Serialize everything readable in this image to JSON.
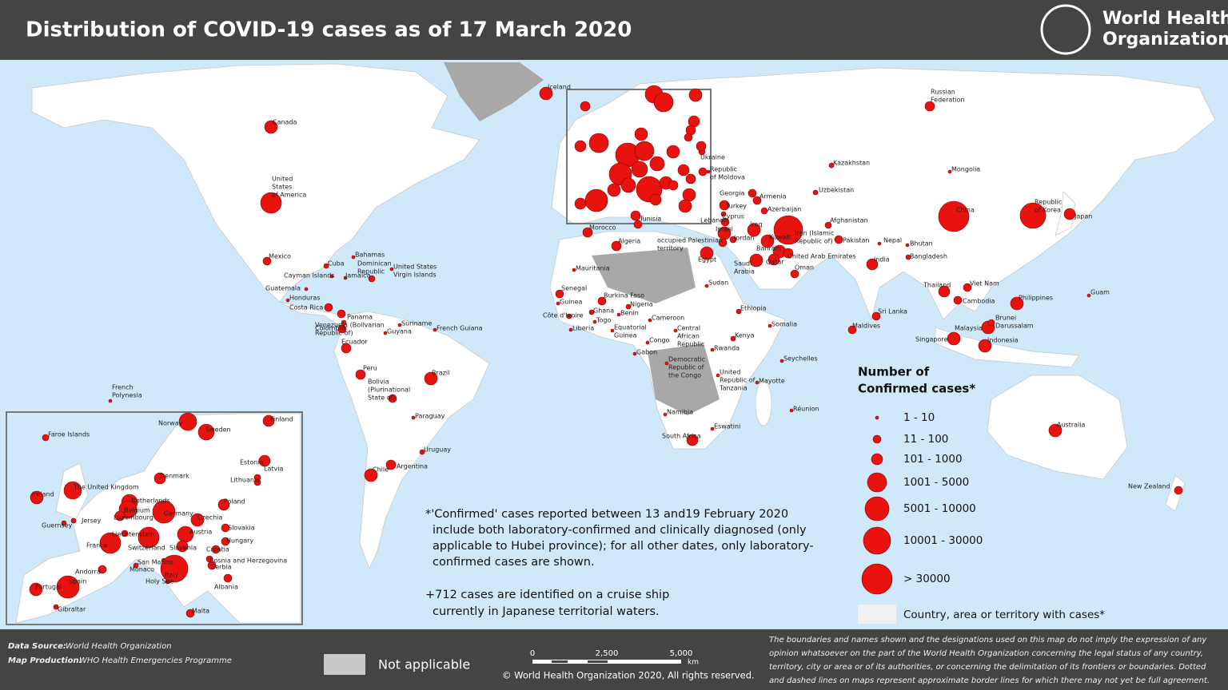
{
  "header": {
    "title": "Distribution of COVID-19  cases as of 17 March 2020",
    "logo": [
      "World Health",
      "Organization"
    ]
  },
  "map": {
    "countries": [
      "Iceland",
      "Canada",
      [
        "United",
        "States",
        "of America"
      ],
      "Mexico",
      [
        "Russian",
        "Federation"
      ],
      "Kazakhstan",
      "Mongolia",
      "Uzbekistan",
      "China",
      [
        "Republic",
        "of Korea"
      ],
      "Japan",
      "Afghanistan",
      [
        "Iran (Islamic",
        "Republic of)"
      ],
      "Pakistan",
      "India",
      "Nepal",
      "Bhutan",
      "Bangladesh",
      "Thailand",
      "Viet Nam",
      "Cambodia",
      "Philippines",
      "Guam",
      "Sri Lanka",
      "Maldives",
      "Malaysia",
      [
        "Brunei",
        "Darussalam"
      ],
      "Singapore",
      "Indonesia",
      "Australia",
      "New Zealand",
      "Turkey",
      "Georgia",
      "Armenia",
      "Azerbaijan",
      "Cyprus",
      "Lebanon",
      "Israel",
      "Iraq",
      "Kuwait",
      [
        "occupied Palestinian",
        "territory"
      ],
      "Jordan",
      "Bahrain",
      "Qatar",
      "United Arab Emirates",
      "Oman",
      [
        "Saudi",
        "Arabia"
      ],
      "Egypt",
      "Sudan",
      "Ethiopia",
      "Somalia",
      "Kenya",
      "Rwanda",
      "Seychelles",
      "Mayotte",
      "Réunion",
      [
        "United",
        "Republic of",
        "Tanzania"
      ],
      "Eswatini",
      [
        "Democratic",
        "Republic of",
        "the Congo"
      ],
      [
        "Central",
        "African",
        "Republic"
      ],
      "Congo",
      "Gabon",
      [
        "Equatorial",
        "Guinea"
      ],
      "Cameroon",
      "Nigeria",
      "Benin",
      "Togo",
      "Ghana",
      "Burkina Faso",
      "Côte d'Ivoire",
      "Liberia",
      "Guinea",
      "Senegal",
      "Mauritania",
      "Morocco",
      "Algeria",
      "Tunisia",
      "Namibia",
      "South Africa",
      "Brazil",
      "Peru",
      [
        "Bolivia",
        "(Plurinational",
        "State of)"
      ],
      "Paraguay",
      "Uruguay",
      "Argentina",
      "Chile",
      "Ecuador",
      "Colombia",
      [
        "Venezuela (Bolivarian",
        "Republic of)"
      ],
      "Guyana",
      "Suriname",
      "French Guiana",
      "Panama",
      "Costa Rica",
      "Honduras",
      "Guatemala",
      "Cuba",
      "Bahamas",
      "Cayman Islands",
      "Jamaica",
      [
        "Dominican",
        "Republic"
      ],
      [
        "United States",
        "Virgin Islands"
      ],
      [
        "French",
        "Polynesia"
      ],
      "Ukraine",
      [
        "Republic",
        "of Moldova"
      ]
    ],
    "inset_countries": [
      "Faroe Islands",
      "Norway",
      "Sweden",
      "Finland",
      "Estonia",
      "Latvia",
      "Denmark",
      "Lithuania",
      "Ireland",
      "The United Kingdom",
      "Netherlands",
      "Belgium",
      "Luxembourg",
      "Germany",
      "Poland",
      "Czechia",
      "Guernsey",
      "Jersey",
      "Slovakia",
      "Liechtenstein",
      "Austria",
      "Hungary",
      "France",
      "Switzerland",
      "Slovenia",
      "Croatia",
      "Andorra",
      "San Marino",
      "Monaco",
      "Bosnia and Herzegovina",
      "Serbia",
      "Holy See",
      "Italy",
      "Portugal",
      "Spain",
      "Albania",
      "Gibraltar",
      "Malta"
    ]
  },
  "legend": {
    "title": [
      "Number of",
      "Confirmed cases*"
    ],
    "items": [
      "1 - 10",
      "11 - 100",
      "101 - 1000",
      "1001 - 5000",
      "5001 - 10000",
      "10001 - 30000",
      "> 30000"
    ],
    "territory": "Country, area or territory with cases*"
  },
  "notes": {
    "confirmed": [
      "*'Confirmed' cases reported between 13 and19 February 2020",
      "include both laboratory-confirmed and clinically diagnosed (only",
      "applicable to Hubei province); for all other dates, only laboratory-",
      "confirmed cases are shown."
    ],
    "cruise": [
      "+712 cases are identified on a cruise ship",
      "currently in Japanese territorial waters."
    ]
  },
  "footer": {
    "data_source_label": "Data Source:",
    "data_source": "World Health Organization",
    "map_production_label": "Map Production:",
    "map_production": "WHO Health Emergencies Programme",
    "not_applicable": "Not applicable",
    "scale": [
      "0",
      "2,500",
      "5,000"
    ],
    "scale_unit": "km",
    "copyright": "© World Health Organization  2020,  All rights reserved.",
    "disclaimer": [
      "The boundaries and names shown and the designations used on this map do not imply the expression of any",
      "opinion whatsoever on the part of the World Health Organization concerning the legal status of any country,",
      "territory, city or area or of its authorities, or concerning the delimitation of its frontiers or boundaries. Dotted",
      "and dashed lines on maps represent approximate border lines for which there may not yet be full agreement."
    ]
  }
}
